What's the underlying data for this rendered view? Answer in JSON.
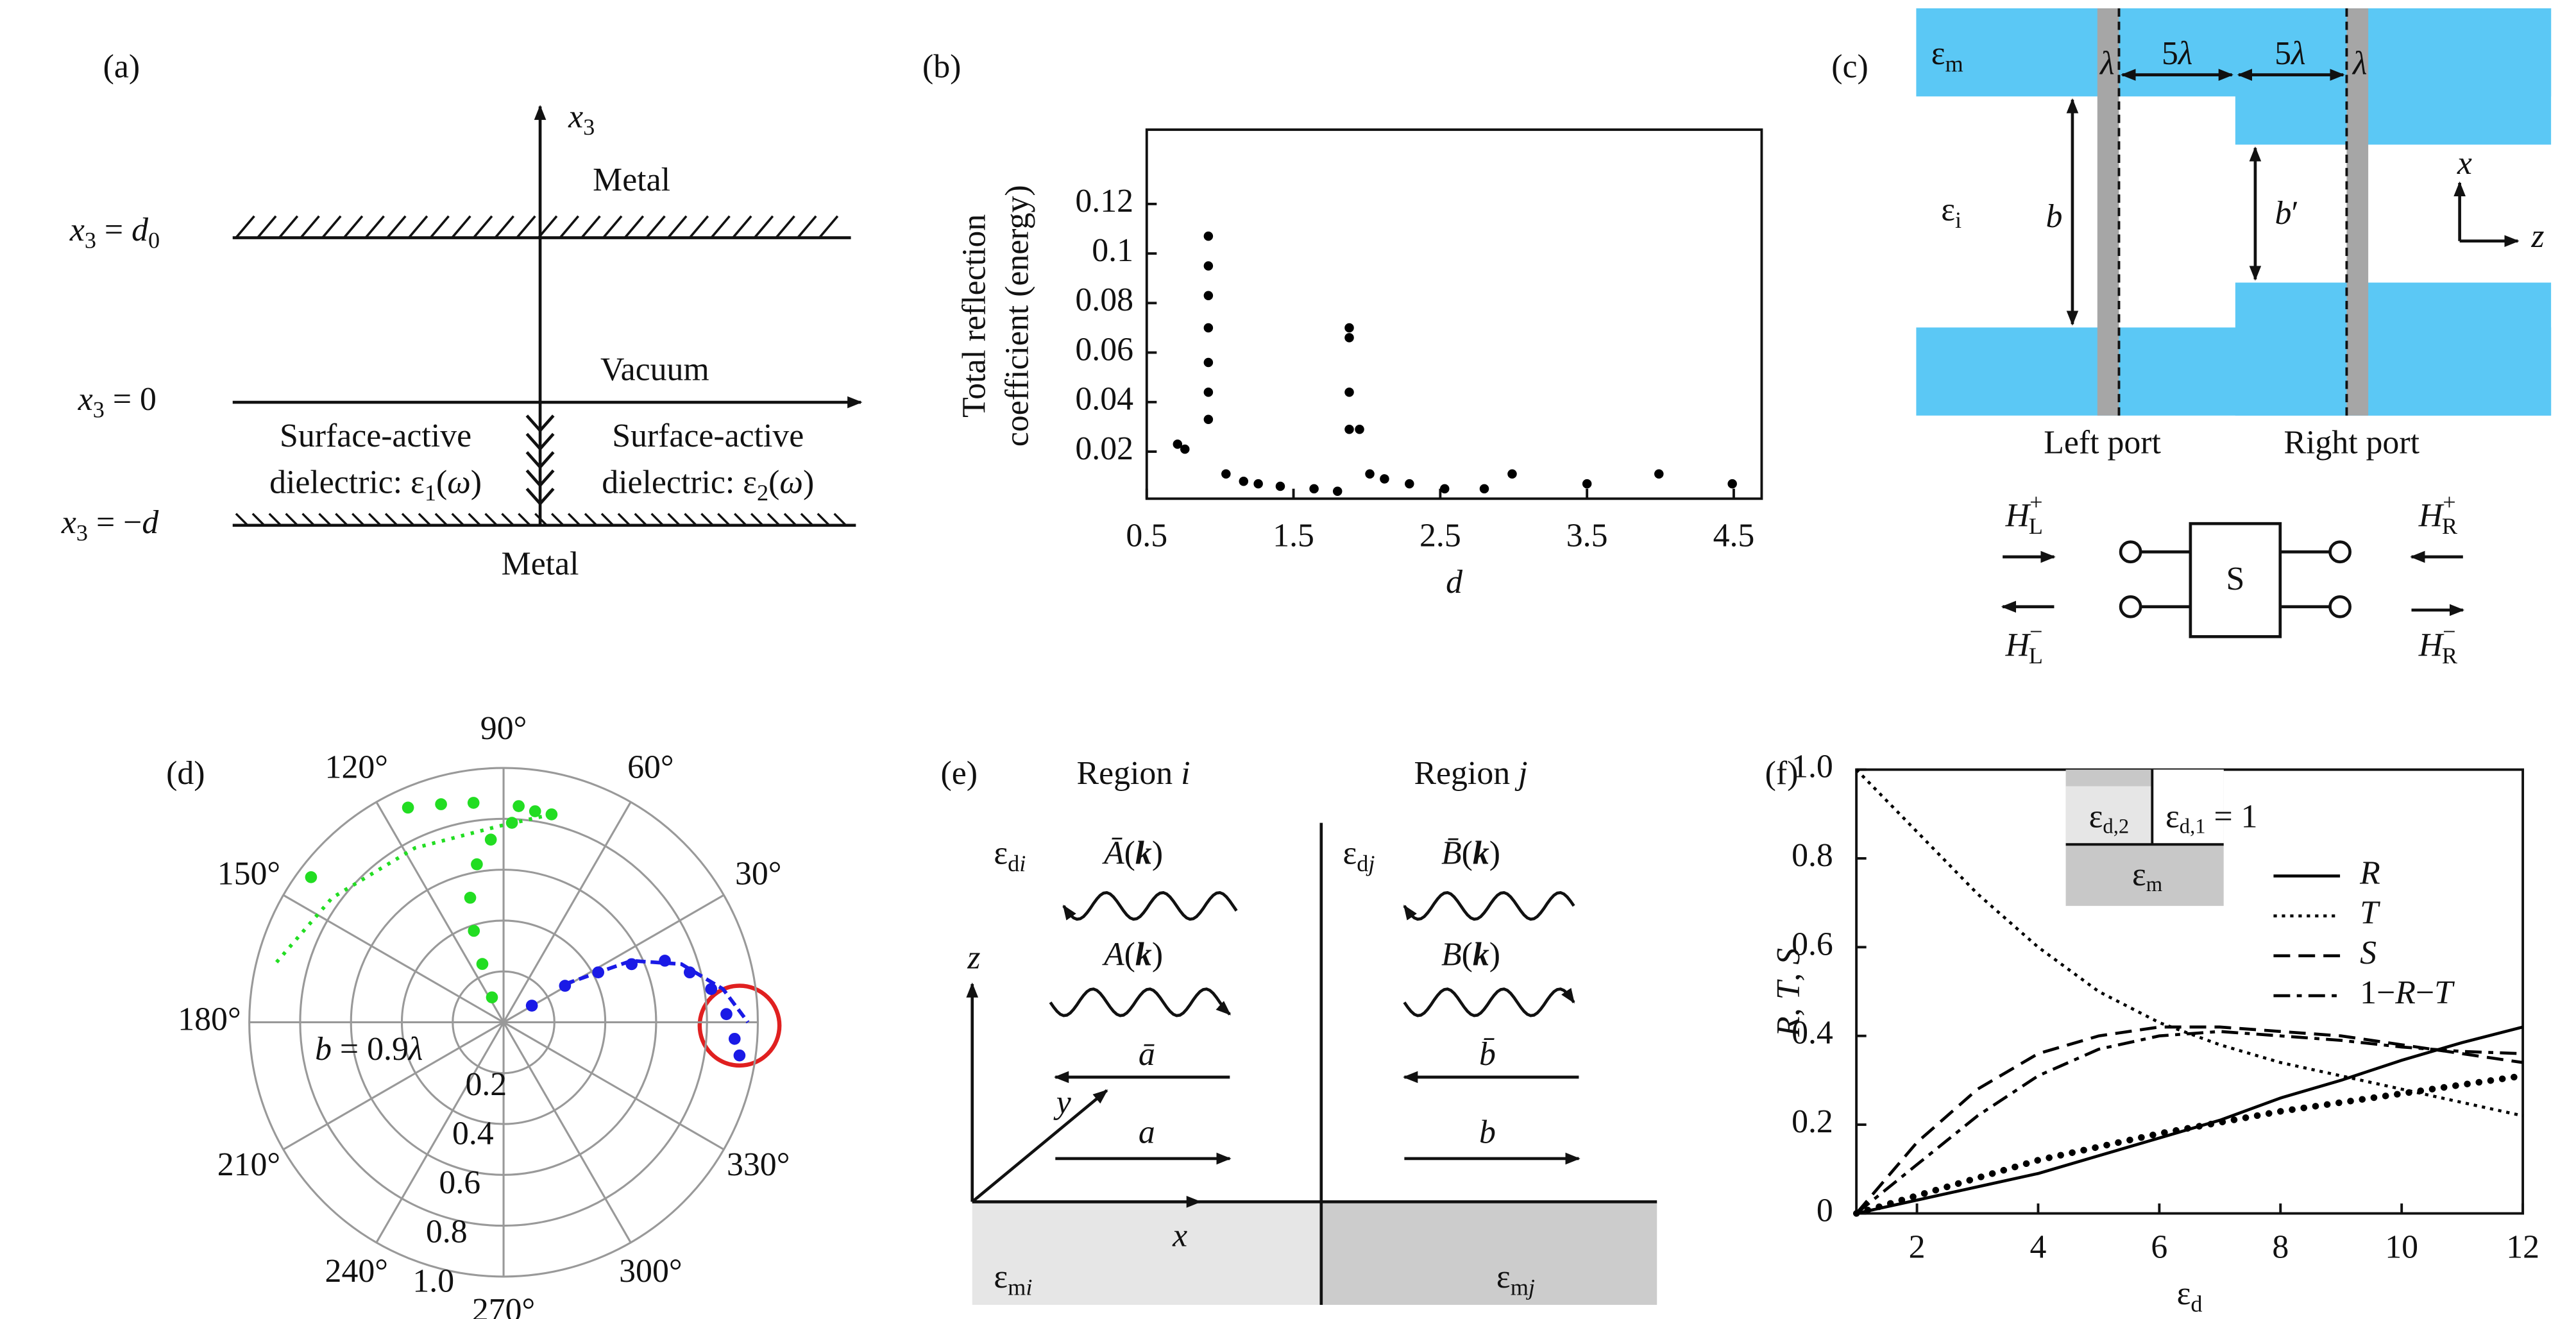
{
  "chart_data": [
    {
      "type": "scatter",
      "panel_label": "(b)",
      "x_label": [
        {
          "it": "d"
        }
      ],
      "y_label": [
        "Total reflection",
        "coefficient (energy)"
      ],
      "x": [
        0.71,
        0.76,
        0.92,
        0.92,
        0.92,
        0.92,
        0.92,
        0.92,
        0.92,
        1.04,
        1.16,
        1.26,
        1.41,
        1.64,
        1.8,
        1.88,
        1.88,
        1.88,
        1.88,
        1.95,
        2.02,
        2.12,
        2.29,
        2.53,
        2.8,
        2.99,
        3.5,
        3.99,
        4.49
      ],
      "y": [
        0.023,
        0.021,
        0.107,
        0.095,
        0.083,
        0.07,
        0.056,
        0.044,
        0.033,
        0.011,
        0.008,
        0.007,
        0.006,
        0.005,
        0.004,
        0.07,
        0.066,
        0.044,
        0.029,
        0.029,
        0.011,
        0.009,
        0.007,
        0.005,
        0.005,
        0.011,
        0.007,
        0.011,
        0.007
      ],
      "color": "#000000",
      "xlim": [
        0.5,
        4.69
      ],
      "ylim": [
        0.001,
        0.15
      ],
      "xticks": [
        0.5,
        1.5,
        2.5,
        3.5,
        4.5
      ],
      "yticks": [
        0.02,
        0.04,
        0.06,
        0.08,
        0.1,
        0.12
      ]
    },
    {
      "type": "polar",
      "panel_label": "(d)",
      "rlim": [
        0,
        1
      ],
      "rticks": [
        0.2,
        0.4,
        0.6,
        {
          "value": 0.8,
          "label": "0.8"
        },
        {
          "value": 1,
          "label": "1.0"
        }
      ],
      "theta_grid": [
        0,
        30,
        60,
        90,
        120,
        150,
        180,
        210,
        240,
        270,
        300,
        330
      ],
      "theta_labels": [
        {
          "value": 30,
          "label": "30°"
        },
        {
          "value": 60,
          "label": "60°"
        },
        {
          "value": 90,
          "label": "90°"
        },
        {
          "value": 120,
          "label": "120°"
        },
        {
          "value": 150,
          "label": "150°"
        },
        {
          "value": 180,
          "label": "180°"
        },
        {
          "value": 210,
          "label": "210°"
        },
        {
          "value": 240,
          "label": "240°"
        },
        {
          "value": 270,
          "label": "270°"
        },
        {
          "value": 300,
          "label": "300°"
        },
        {
          "value": 330,
          "label": "330°"
        }
      ],
      "annotation": [
        {
          "it": "b"
        },
        " = 0.9",
        {
          "it": "λ"
        }
      ],
      "series": [
        {
          "color": "#22dd22",
          "style": "markers",
          "theta": [
            115,
            110,
            108,
            105,
            99.6,
            94,
            87.6,
            81.5,
            77,
            86,
            97.8,
            106,
            114,
            143
          ],
          "r": [
            0.108,
            0.244,
            0.378,
            0.507,
            0.63,
            0.72,
            0.785,
            0.839,
            0.839,
            0.852,
            0.871,
            0.892,
            0.924,
            0.948
          ]
        },
        {
          "color": "#22dd22",
          "style": "dotted",
          "theta": [
            77,
            91.5,
            117,
            144,
            166
          ],
          "r": [
            0.839,
            0.771,
            0.769,
            0.833,
            0.93
          ]
        },
        {
          "color": "#1a1ae6",
          "style": "markers",
          "theta": [
            30.5,
            30.7,
            27.8,
            24.4,
            20.9,
            15,
            9.1,
            2.1,
            355.9,
            352
          ],
          "r": [
            0.129,
            0.281,
            0.421,
            0.553,
            0.679,
            0.758,
            0.827,
            0.877,
            0.911,
            0.937
          ]
        },
        {
          "color": "#1a1ae6",
          "style": "dashed",
          "theta": [
            31.9,
            25.7,
            18.1,
            8.6,
            0
          ],
          "r": [
            0.284,
            0.558,
            0.736,
            0.873,
            0.961
          ]
        }
      ]
    },
    {
      "type": "line",
      "panel_label": "(f)",
      "x_label": [
        "ε",
        {
          "sub": "d"
        }
      ],
      "y_label": [
        {
          "it": "R"
        },
        ", ",
        {
          "it": "T"
        },
        ", ",
        {
          "it": "S"
        }
      ],
      "inset": {
        "left": [
          "ε",
          {
            "sub": "d,2"
          }
        ],
        "right": [
          "ε",
          {
            "sub": "d,1"
          },
          " = 1"
        ],
        "bottom": [
          "ε",
          {
            "sub": "m"
          }
        ]
      },
      "x": [
        1,
        2,
        3,
        4,
        5,
        6,
        7,
        8,
        9,
        10,
        11,
        12
      ],
      "series": [
        {
          "name": [
            {
              "it": "R"
            }
          ],
          "color": "#000000",
          "dash": "solid",
          "values": [
            0,
            0.03,
            0.06,
            0.09,
            0.13,
            0.17,
            0.21,
            0.26,
            0.3,
            0.345,
            0.385,
            0.42
          ]
        },
        {
          "name": [
            {
              "it": "T"
            }
          ],
          "color": "#000000",
          "dash": "dotted",
          "values": [
            1,
            0.86,
            0.72,
            0.6,
            0.5,
            0.43,
            0.38,
            0.34,
            0.31,
            0.28,
            0.25,
            0.22
          ]
        },
        {
          "name": [
            {
              "it": "S"
            }
          ],
          "color": "#000000",
          "dash": "dashed",
          "values": [
            0,
            0.16,
            0.28,
            0.36,
            0.4,
            0.42,
            0.42,
            0.41,
            0.4,
            0.38,
            0.36,
            0.34
          ]
        },
        {
          "name": [
            "1−",
            {
              "it": "R"
            },
            "−",
            {
              "it": "T"
            }
          ],
          "color": "#000000",
          "dash": "dashdot",
          "values": [
            0,
            0.11,
            0.22,
            0.31,
            0.37,
            0.4,
            0.41,
            0.4,
            0.39,
            0.375,
            0.365,
            0.36
          ]
        },
        {
          "color": "#000000",
          "dash": "dots",
          "values": [
            0,
            0.04,
            0.08,
            0.12,
            0.15,
            0.18,
            0.205,
            0.23,
            0.25,
            0.27,
            0.29,
            0.31
          ]
        }
      ],
      "xlim": [
        1,
        12
      ],
      "ylim": [
        0,
        1
      ],
      "xticks": [
        2,
        4,
        6,
        8,
        10,
        12
      ],
      "yticks": [
        0,
        0.2,
        0.4,
        0.6,
        0.8,
        {
          "value": 1,
          "label": "1.0"
        }
      ]
    }
  ],
  "diagrams": {
    "a": {
      "label": "(a)",
      "axis": [
        {
          "it": "x"
        },
        {
          "sub": "3"
        }
      ],
      "metal_top": "Metal",
      "vacuum": "Vacuum",
      "metal_bottom": "Metal",
      "levels": [
        [
          {
            "it": "x"
          },
          {
            "sub": "3"
          },
          " = ",
          {
            "it": "d"
          },
          {
            "sub": "0"
          }
        ],
        [
          {
            "it": "x"
          },
          {
            "sub": "3"
          },
          " = 0"
        ],
        [
          {
            "it": "x"
          },
          {
            "sub": "3"
          },
          " = −",
          {
            "it": "d"
          }
        ]
      ],
      "left": [
        "Surface-active",
        [
          "dielectric: ε",
          {
            "sub": "1"
          },
          "(",
          {
            "it": "ω"
          },
          ")"
        ]
      ],
      "right": [
        "Surface-active",
        [
          "dielectric: ε",
          {
            "sub": "2"
          },
          "(",
          {
            "it": "ω"
          },
          ")"
        ]
      ]
    },
    "c": {
      "label": "(c)",
      "eps_m": [
        "ε",
        {
          "sub": "m"
        }
      ],
      "lambda_left": [
        {
          "it": "λ"
        }
      ],
      "span_left": [
        "5",
        {
          "it": "λ"
        }
      ],
      "span_right": [
        "5",
        {
          "it": "λ"
        }
      ],
      "lambda_right": [
        {
          "it": "λ"
        }
      ],
      "eps_i": [
        "ε",
        {
          "sub": "i"
        }
      ],
      "b": [
        {
          "it": "b"
        }
      ],
      "b_prime": [
        {
          "it": "b"
        },
        "′"
      ],
      "axis_x": [
        {
          "it": "x"
        }
      ],
      "axis_z": [
        {
          "it": "z"
        }
      ],
      "left_port": "Left port",
      "right_port": "Right port",
      "H_L_plus": [
        {
          "it": "H"
        },
        {
          "subsup": {
            "sup": "+",
            "sub": "L"
          }
        }
      ],
      "H_L_minus": [
        {
          "it": "H"
        },
        {
          "subsup": {
            "sup": "−",
            "sub": "L"
          }
        }
      ],
      "H_R_plus": [
        {
          "it": "H"
        },
        {
          "subsup": {
            "sup": "+",
            "sub": "R"
          }
        }
      ],
      "H_R_minus": [
        {
          "it": "H"
        },
        {
          "subsup": {
            "sup": "−",
            "sub": "R"
          }
        }
      ],
      "S": "S"
    },
    "e": {
      "label": "(e)",
      "region_i": [
        "Region ",
        {
          "it": "i"
        }
      ],
      "region_j": [
        "Region ",
        {
          "it": "j"
        }
      ],
      "eps_di": [
        "ε",
        {
          "sub": "d"
        },
        {
          "subit": "i"
        }
      ],
      "eps_dj": [
        "ε",
        {
          "sub": "d"
        },
        {
          "subit": "j"
        }
      ],
      "A_bar": [
        {
          "it": "Ā"
        },
        "(",
        {
          "bi": "k"
        },
        ")"
      ],
      "A": [
        {
          "it": "A"
        },
        "(",
        {
          "bi": "k"
        },
        ")"
      ],
      "B_bar": [
        {
          "it": "B̄"
        },
        "(",
        {
          "bi": "k"
        },
        ")"
      ],
      "B": [
        {
          "it": "B"
        },
        "(",
        {
          "bi": "k"
        },
        ")"
      ],
      "a_bar": [
        {
          "it": "ā"
        }
      ],
      "a": [
        {
          "it": "a"
        }
      ],
      "b_bar": [
        {
          "it": "b̄"
        }
      ],
      "b": [
        {
          "it": "b"
        }
      ],
      "axis_z": [
        {
          "it": "z"
        }
      ],
      "axis_y": [
        {
          "it": "y"
        }
      ],
      "axis_x": [
        {
          "it": "x"
        }
      ],
      "eps_mi": [
        "ε",
        {
          "sub": "m"
        },
        {
          "subit": "i"
        }
      ],
      "eps_mj": [
        "ε",
        {
          "sub": "m"
        },
        {
          "subit": "j"
        }
      ]
    }
  }
}
